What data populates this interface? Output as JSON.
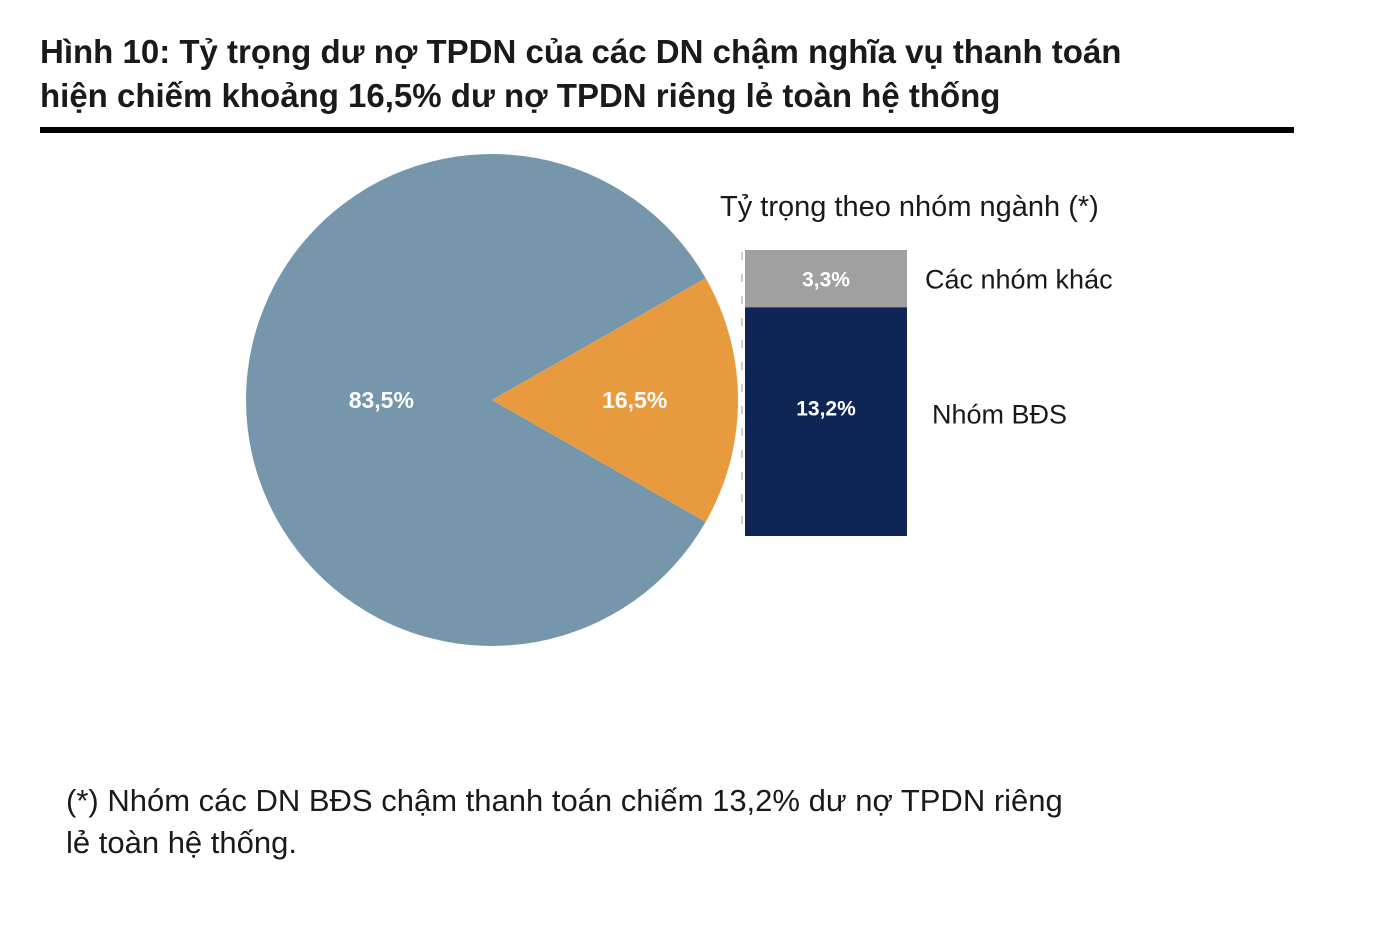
{
  "figure": {
    "title_line1": "Hình 10: Tỷ trọng dư nợ TPDN của các DN chậm nghĩa vụ thanh toán",
    "title_line2": "hiện chiếm khoảng 16,5% dư nợ TPDN riêng lẻ toàn hệ thống",
    "footnote_line1": "(*) Nhóm các DN BĐS chậm thanh toán chiếm 13,2% dư nợ TPDN riêng",
    "footnote_line2": "lẻ toàn hệ thống."
  },
  "chart_data": [
    {
      "type": "pie",
      "slices": [
        {
          "value": 83.5,
          "label": "83,5%",
          "color": "#7697ab"
        },
        {
          "value": 16.5,
          "label": "16,5%",
          "color": "#e89a3e"
        }
      ],
      "label_color": "#ffffff"
    },
    {
      "type": "bar",
      "stacked": true,
      "title": "Tỷ trọng theo nhóm ngành (*)",
      "total": 16.5,
      "series": [
        {
          "name": "Nhóm BĐS",
          "value": 13.2,
          "label": "13,2%",
          "color": "#0e2556"
        },
        {
          "name": "Các nhóm khác",
          "value": 3.3,
          "label": "3,3%",
          "color": "#a0a0a0"
        }
      ],
      "label_color": "#ffffff"
    }
  ]
}
